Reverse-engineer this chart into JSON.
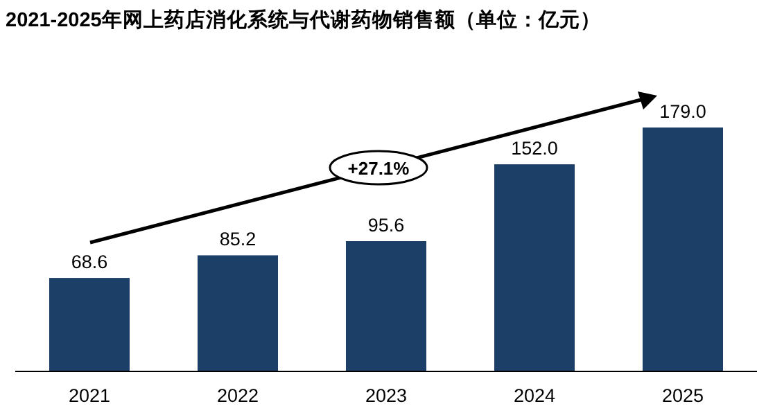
{
  "chart_data": {
    "type": "bar",
    "title": "2021-2025年网上药店消化系统与代谢药物销售额（单位：亿元）",
    "categories": [
      "2021",
      "2022",
      "2023",
      "2024",
      "2025"
    ],
    "values": [
      68.6,
      85.2,
      95.6,
      152.0,
      179.0
    ],
    "value_labels": [
      "68.6",
      "85.2",
      "95.6",
      "152.0",
      "179.0"
    ],
    "color": "#1b3f66",
    "annotations": [
      "+27.1%"
    ]
  }
}
